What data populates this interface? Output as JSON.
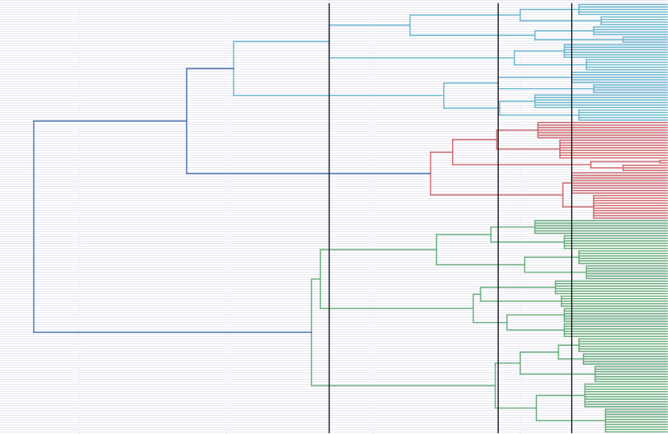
{
  "chart_data": {
    "type": "dendrogram",
    "orientation": "left",
    "xlim": [
      4.54,
      0
    ],
    "xticks": [
      1,
      2,
      3,
      4
    ],
    "grid": true,
    "cut_lines": [
      2.3,
      1.15,
      0.65
    ],
    "cut_line_color": "#222222",
    "tree": {
      "h": 4.31,
      "color": "#4c72b0",
      "children": [
        {
          "h": 3.27,
          "children": [
            {
              "h": 2.95,
              "color": "#6bb8cf",
              "children": [
                {
                  "h": 2.3,
                  "children": [
                    {
                      "h": 1.75,
                      "children": [
                        {
                          "h": 1.0,
                          "children": [
                            {
                              "h": 0.6,
                              "leaves": 5
                            },
                            {
                              "h": 0.45,
                              "leaves": 4
                            }
                          ]
                        },
                        {
                          "h": 0.9,
                          "children": [
                            {
                              "h": 0.5,
                              "leaves": 4
                            },
                            {
                              "h": 0.3,
                              "leaves": 3
                            }
                          ]
                        }
                      ]
                    },
                    {
                      "h": 1.04,
                      "children": [
                        {
                          "h": 0.7,
                          "leaves": 6
                        },
                        {
                          "h": 0.55,
                          "leaves": 5
                        }
                      ]
                    }
                  ]
                },
                {
                  "h": 1.52,
                  "children": [
                    {
                      "h": 1.15,
                      "children": [
                        {
                          "h": 0.65,
                          "leaves": 5
                        },
                        {
                          "h": 0.5,
                          "leaves": 4
                        }
                      ]
                    },
                    {
                      "h": 1.14,
                      "children": [
                        {
                          "h": 0.9,
                          "leaves": 6
                        },
                        {
                          "h": 0.6,
                          "leaves": 5
                        }
                      ]
                    }
                  ]
                }
              ]
            },
            {
              "h": 1.61,
              "color": "#d0696d",
              "children": [
                {
                  "h": 1.46,
                  "children": [
                    {
                      "h": 1.16,
                      "children": [
                        {
                          "h": 0.88,
                          "leaves": 7
                        },
                        {
                          "h": 0.73,
                          "leaves": 8
                        }
                      ]
                    },
                    {
                      "h": 0.52,
                      "children": [
                        {
                          "h": 0.05,
                          "leaves": 2
                        },
                        {
                          "h": 0.3,
                          "leaves": 3
                        }
                      ]
                    }
                  ]
                },
                {
                  "h": 0.71,
                  "children": [
                    {
                      "h": 0.65,
                      "leaves": 9
                    },
                    {
                      "h": 0.5,
                      "leaves": 10
                    }
                  ]
                }
              ]
            }
          ]
        },
        {
          "h": 2.42,
          "color": "#6aae7c",
          "children": [
            {
              "h": 2.36,
              "children": [
                {
                  "h": 1.57,
                  "children": [
                    {
                      "h": 1.2,
                      "children": [
                        {
                          "h": 0.9,
                          "leaves": 6
                        },
                        {
                          "h": 0.7,
                          "leaves": 6
                        }
                      ]
                    },
                    {
                      "h": 0.97,
                      "children": [
                        {
                          "h": 0.6,
                          "leaves": 6
                        },
                        {
                          "h": 0.55,
                          "leaves": 6
                        }
                      ]
                    }
                  ]
                },
                {
                  "h": 1.32,
                  "children": [
                    {
                      "h": 1.27,
                      "children": [
                        {
                          "h": 0.76,
                          "leaves": 6
                        },
                        {
                          "h": 0.72,
                          "leaves": 5
                        }
                      ]
                    },
                    {
                      "h": 1.09,
                      "children": [
                        {
                          "h": 0.7,
                          "leaves": 6
                        },
                        {
                          "h": 0.7,
                          "leaves": 6
                        }
                      ]
                    }
                  ]
                }
              ]
            },
            {
              "h": 1.17,
              "children": [
                {
                  "h": 1.0,
                  "children": [
                    {
                      "h": 0.74,
                      "children": [
                        {
                          "h": 0.6,
                          "leaves": 6
                        },
                        {
                          "h": 0.57,
                          "leaves": 5
                        }
                      ]
                    },
                    {
                      "h": 0.49,
                      "leaves": 7
                    }
                  ]
                },
                {
                  "h": 0.89,
                  "children": [
                    {
                      "h": 0.56,
                      "leaves": 10
                    },
                    {
                      "h": 0.42,
                      "leaves": 10
                    }
                  ]
                }
              ]
            }
          ]
        }
      ]
    }
  }
}
